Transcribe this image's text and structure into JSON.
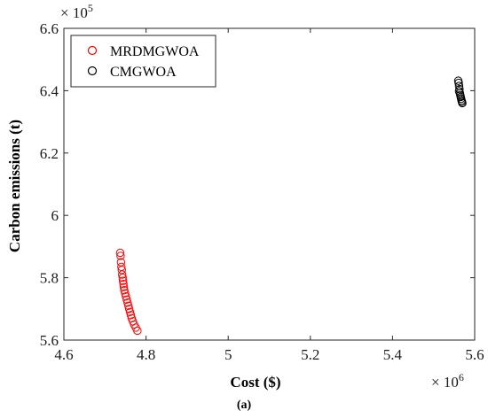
{
  "chart_data": {
    "type": "scatter",
    "xlabel": "Cost ($)",
    "ylabel": "Carbon emissions (t)",
    "x_exponent_label": "× 10^6",
    "y_exponent_label": "× 10^5",
    "xlim": [
      4.6,
      5.6
    ],
    "ylim": [
      5.6,
      6.6
    ],
    "x_ticks": [
      "4.6",
      "4.8",
      "5",
      "5.2",
      "5.4",
      "5.6"
    ],
    "y_ticks": [
      "5.6",
      "5.8",
      "6",
      "6.2",
      "6.4",
      "6.6"
    ],
    "grid": false,
    "legend_position": "top-left",
    "series": [
      {
        "name": "MRDMGWOA",
        "color": "#ff0000",
        "marker": "open-circle",
        "points": [
          [
            4.737,
            5.88
          ],
          [
            4.738,
            5.87
          ],
          [
            4.739,
            5.85
          ],
          [
            4.74,
            5.835
          ],
          [
            4.741,
            5.825
          ],
          [
            4.742,
            5.81
          ],
          [
            4.743,
            5.8
          ],
          [
            4.744,
            5.79
          ],
          [
            4.745,
            5.78
          ],
          [
            4.746,
            5.77
          ],
          [
            4.747,
            5.76
          ],
          [
            4.749,
            5.75
          ],
          [
            4.751,
            5.74
          ],
          [
            4.753,
            5.73
          ],
          [
            4.755,
            5.72
          ],
          [
            4.757,
            5.71
          ],
          [
            4.759,
            5.7
          ],
          [
            4.761,
            5.69
          ],
          [
            4.763,
            5.68
          ],
          [
            4.765,
            5.67
          ],
          [
            4.768,
            5.66
          ],
          [
            4.771,
            5.65
          ],
          [
            4.775,
            5.64
          ],
          [
            4.779,
            5.63
          ]
        ]
      },
      {
        "name": "CMGWOA",
        "color": "#000000",
        "marker": "open-circle",
        "points": [
          [
            5.56,
            6.432
          ],
          [
            5.561,
            6.425
          ],
          [
            5.562,
            6.415
          ],
          [
            5.563,
            6.405
          ],
          [
            5.562,
            6.398
          ],
          [
            5.564,
            6.392
          ],
          [
            5.565,
            6.386
          ],
          [
            5.566,
            6.38
          ],
          [
            5.567,
            6.374
          ],
          [
            5.568,
            6.368
          ],
          [
            5.569,
            6.364
          ],
          [
            5.57,
            6.36
          ]
        ]
      }
    ]
  },
  "caption": "(a)"
}
